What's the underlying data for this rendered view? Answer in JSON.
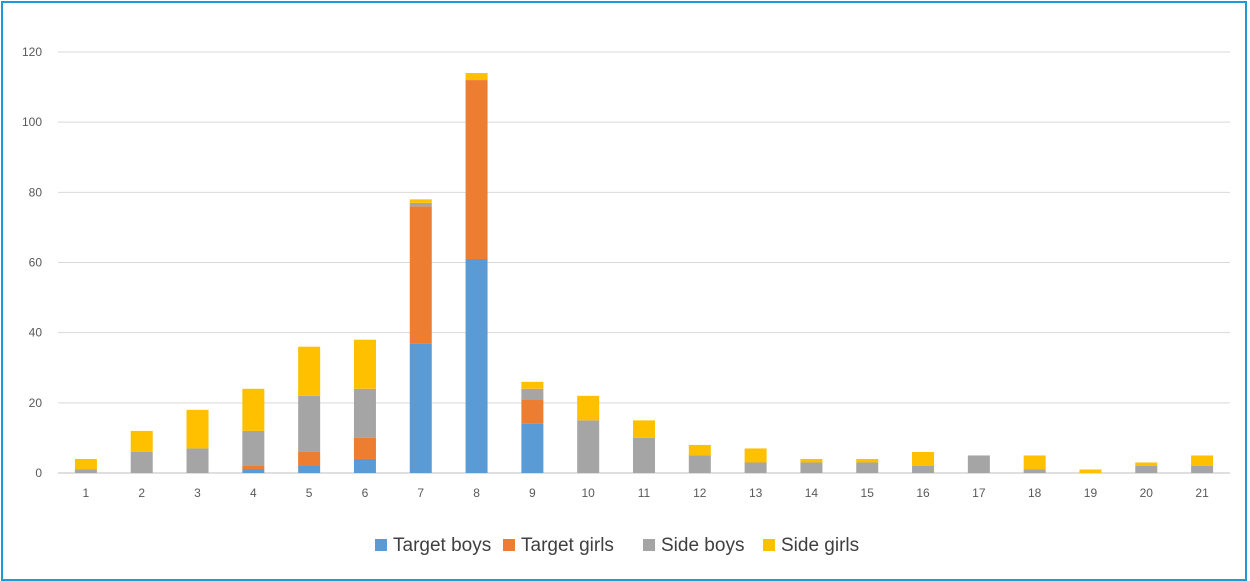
{
  "chart_data": {
    "type": "bar",
    "stacked": true,
    "categories": [
      "1",
      "2",
      "3",
      "4",
      "5",
      "6",
      "7",
      "8",
      "9",
      "10",
      "11",
      "12",
      "13",
      "14",
      "15",
      "16",
      "17",
      "18",
      "19",
      "20",
      "21"
    ],
    "series": [
      {
        "name": "Target boys",
        "color": "#5b9bd5",
        "values": [
          0,
          0,
          0,
          1,
          2,
          4,
          37,
          61,
          14,
          0,
          0,
          0,
          0,
          0,
          0,
          0,
          0,
          0,
          0,
          0,
          0
        ]
      },
      {
        "name": "Target girls",
        "color": "#ed7d31",
        "values": [
          0,
          0,
          0,
          1,
          4,
          6,
          39,
          51,
          7,
          0,
          0,
          0,
          0,
          0,
          0,
          0,
          0,
          0,
          0,
          0,
          0
        ]
      },
      {
        "name": "Side boys",
        "color": "#a5a5a5",
        "values": [
          1,
          6,
          7,
          10,
          16,
          14,
          1,
          0,
          3,
          15,
          10,
          5,
          3,
          3,
          3,
          2,
          5,
          1,
          0,
          2,
          2
        ]
      },
      {
        "name": "Side girls",
        "color": "#ffc000",
        "values": [
          3,
          6,
          11,
          12,
          14,
          14,
          1,
          2,
          2,
          7,
          5,
          3,
          4,
          1,
          1,
          4,
          0,
          4,
          1,
          1,
          3
        ]
      }
    ],
    "ylim": [
      0,
      120
    ],
    "yticks": [
      0,
      20,
      40,
      60,
      80,
      100,
      120
    ],
    "grid": true,
    "legend_position": "bottom"
  }
}
